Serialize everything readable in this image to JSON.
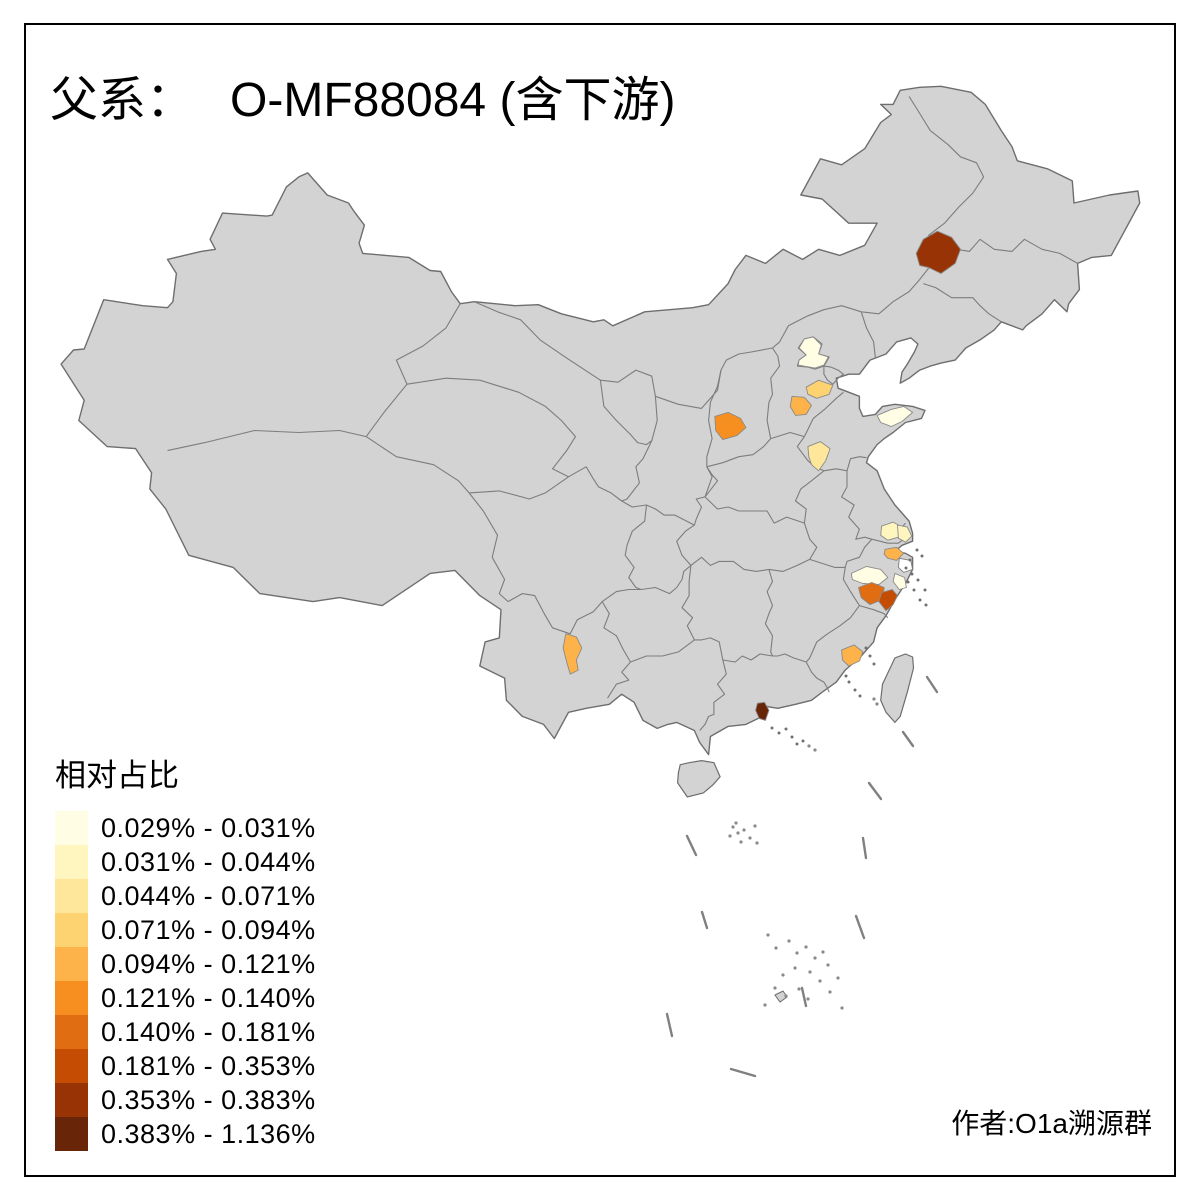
{
  "title": {
    "prefix": "父系：",
    "name": "O-MF88084 (含下游)"
  },
  "legend": {
    "title": "相对占比",
    "items": [
      {
        "range": "0.029% - 0.031%",
        "color": "#FFFEE5"
      },
      {
        "range": "0.031% - 0.044%",
        "color": "#FFF5BF"
      },
      {
        "range": "0.044% - 0.071%",
        "color": "#FEE79B"
      },
      {
        "range": "0.071% - 0.094%",
        "color": "#FDD271"
      },
      {
        "range": "0.094% - 0.121%",
        "color": "#FDB24A"
      },
      {
        "range": "0.121% - 0.140%",
        "color": "#F78F20"
      },
      {
        "range": "0.140% - 0.181%",
        "color": "#E06D12"
      },
      {
        "range": "0.181% - 0.353%",
        "color": "#C44C03"
      },
      {
        "range": "0.353% - 0.383%",
        "color": "#973305"
      },
      {
        "range": "0.383% - 1.136%",
        "color": "#692507"
      }
    ]
  },
  "credit": "作者:O1a溯源群",
  "map": {
    "land_color": "#D3D3D3",
    "border_color": "#7D7D7D",
    "coast_color": "#6E6E6E",
    "no_data_color": "#FFFFFF",
    "background": "#FFFFFF",
    "frame_color": "#000000"
  }
}
